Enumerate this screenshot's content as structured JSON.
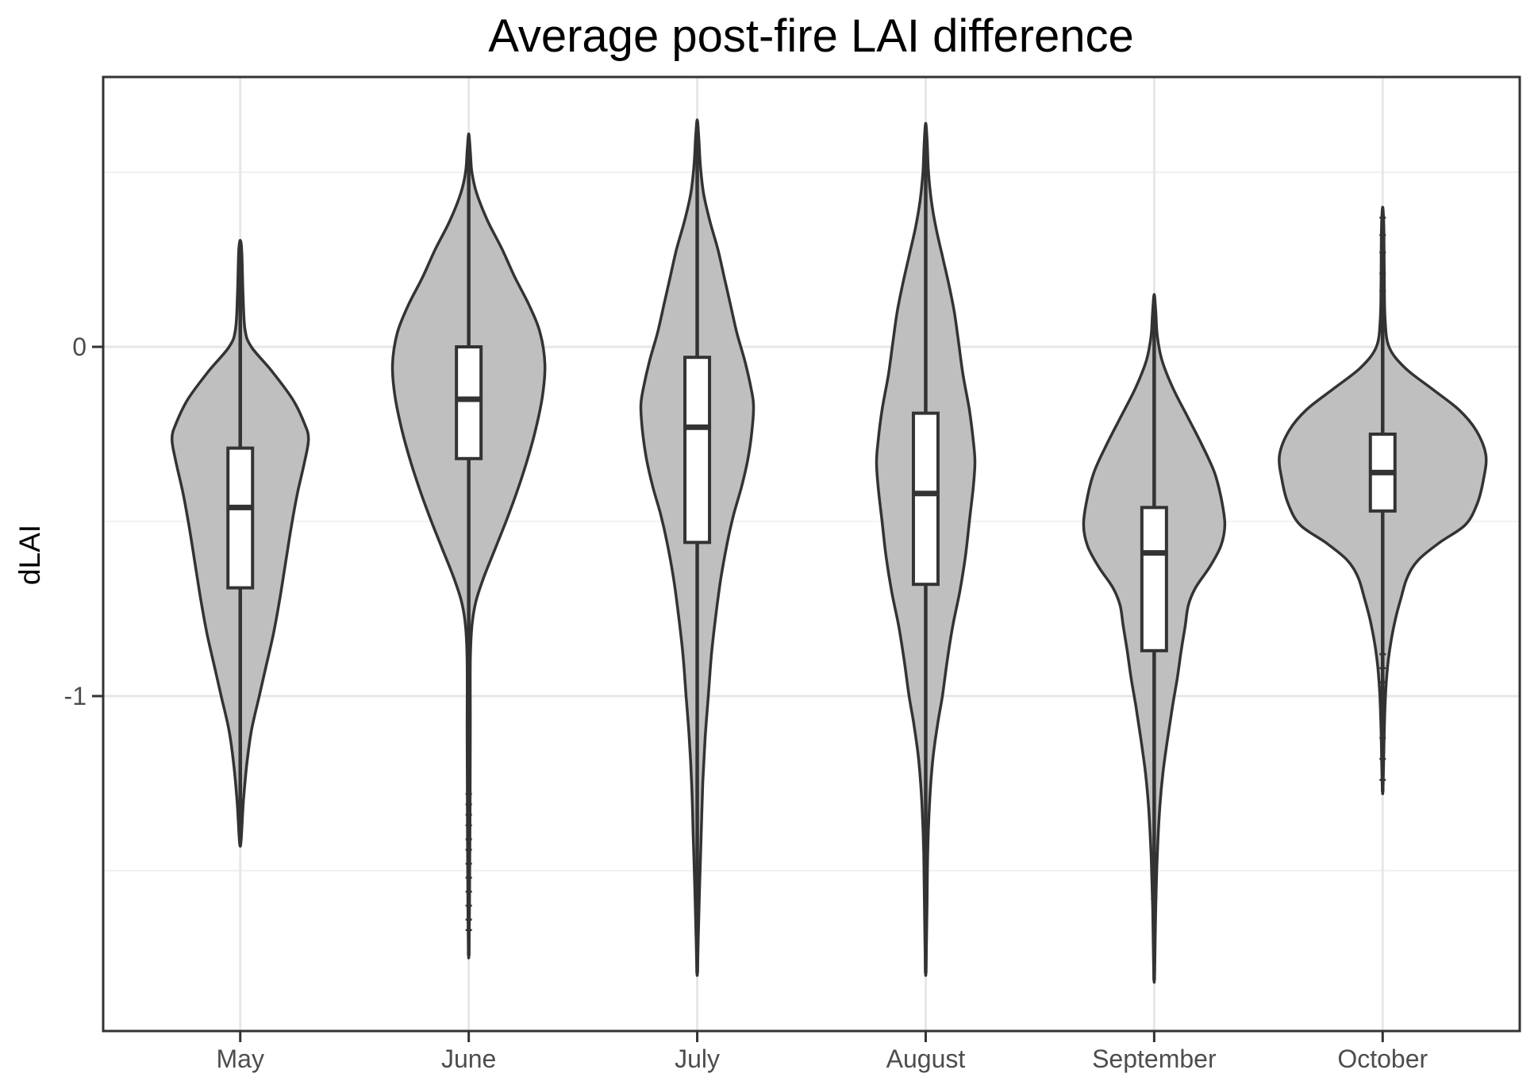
{
  "chart_data": {
    "type": "violin",
    "title": "Average post-fire LAI difference",
    "ylabel": "dLAI",
    "xlabel": "",
    "ylim": [
      -1.97,
      0.77
    ],
    "grid": "on",
    "legend": "none",
    "y_ticks": [
      {
        "label": "0",
        "value": 0
      },
      {
        "label": "-1",
        "value": -1
      }
    ],
    "y_major_gridlines": [
      0,
      -1
    ],
    "y_minor_gridlines": [
      0.5,
      -0.5,
      -1.5
    ],
    "categories": [
      "May",
      "June",
      "July",
      "August",
      "September",
      "October"
    ],
    "series": [
      {
        "name": "May",
        "box": {
          "q3": -0.29,
          "median": -0.46,
          "q1": -0.69
        },
        "line_top": 0.305,
        "line_bottom": -1.43,
        "outliers": [],
        "shape": [
          [
            0.305,
            0
          ],
          [
            0.27,
            2
          ],
          [
            0.15,
            3.5
          ],
          [
            0.05,
            6
          ],
          [
            0.0,
            14
          ],
          [
            -0.07,
            40
          ],
          [
            -0.15,
            66
          ],
          [
            -0.22,
            81
          ],
          [
            -0.264,
            86
          ],
          [
            -0.33,
            81
          ],
          [
            -0.42,
            72
          ],
          [
            -0.52,
            64
          ],
          [
            -0.62,
            57
          ],
          [
            -0.72,
            50
          ],
          [
            -0.82,
            42
          ],
          [
            -0.92,
            32
          ],
          [
            -1.0,
            24
          ],
          [
            -1.1,
            14
          ],
          [
            -1.2,
            8
          ],
          [
            -1.3,
            4
          ],
          [
            -1.43,
            0
          ]
        ]
      },
      {
        "name": "June",
        "box": {
          "q3": 0.0,
          "median": -0.15,
          "q1": -0.32
        },
        "line_top": 0.61,
        "line_bottom": -1.75,
        "outliers": [
          -1.28,
          -1.31,
          -1.34,
          -1.37,
          -1.41,
          -1.44,
          -1.48,
          -1.52,
          -1.56,
          -1.6,
          -1.64,
          -1.67
        ],
        "shape": [
          [
            0.61,
            0
          ],
          [
            0.56,
            2
          ],
          [
            0.5,
            4
          ],
          [
            0.44,
            10
          ],
          [
            0.36,
            24
          ],
          [
            0.28,
            42
          ],
          [
            0.2,
            58
          ],
          [
            0.12,
            76
          ],
          [
            0.04,
            90
          ],
          [
            -0.05,
            96
          ],
          [
            -0.14,
            93
          ],
          [
            -0.24,
            84
          ],
          [
            -0.33,
            73
          ],
          [
            -0.42,
            60
          ],
          [
            -0.5,
            47
          ],
          [
            -0.58,
            33
          ],
          [
            -0.66,
            19
          ],
          [
            -0.73,
            9
          ],
          [
            -0.8,
            4
          ],
          [
            -0.9,
            2
          ],
          [
            -1.1,
            2
          ],
          [
            -1.4,
            1.5
          ],
          [
            -1.6,
            1
          ],
          [
            -1.75,
            0
          ]
        ]
      },
      {
        "name": "July",
        "box": {
          "q3": -0.03,
          "median": -0.23,
          "q1": -0.56
        },
        "line_top": 0.65,
        "line_bottom": -1.8,
        "outliers": [],
        "shape": [
          [
            0.65,
            0
          ],
          [
            0.6,
            2
          ],
          [
            0.52,
            4
          ],
          [
            0.44,
            8
          ],
          [
            0.36,
            16
          ],
          [
            0.28,
            26
          ],
          [
            0.2,
            34
          ],
          [
            0.12,
            42
          ],
          [
            0.04,
            50
          ],
          [
            -0.04,
            60
          ],
          [
            -0.12,
            68
          ],
          [
            -0.17,
            71
          ],
          [
            -0.24,
            69
          ],
          [
            -0.32,
            64
          ],
          [
            -0.4,
            56
          ],
          [
            -0.48,
            46
          ],
          [
            -0.56,
            38
          ],
          [
            -0.66,
            30
          ],
          [
            -0.76,
            24
          ],
          [
            -0.88,
            18
          ],
          [
            -1.0,
            14
          ],
          [
            -1.12,
            10
          ],
          [
            -1.25,
            7
          ],
          [
            -1.4,
            5
          ],
          [
            -1.55,
            3
          ],
          [
            -1.68,
            1.5
          ],
          [
            -1.8,
            0
          ]
        ]
      },
      {
        "name": "August",
        "box": {
          "q3": -0.19,
          "median": -0.42,
          "q1": -0.68
        },
        "line_top": 0.64,
        "line_bottom": -1.8,
        "outliers": [],
        "shape": [
          [
            0.64,
            0
          ],
          [
            0.58,
            2
          ],
          [
            0.5,
            3.5
          ],
          [
            0.42,
            7
          ],
          [
            0.34,
            13
          ],
          [
            0.26,
            21
          ],
          [
            0.18,
            29
          ],
          [
            0.1,
            36
          ],
          [
            0.02,
            41
          ],
          [
            -0.08,
            47
          ],
          [
            -0.18,
            55
          ],
          [
            -0.27,
            60
          ],
          [
            -0.33,
            62
          ],
          [
            -0.4,
            60
          ],
          [
            -0.5,
            55
          ],
          [
            -0.6,
            50
          ],
          [
            -0.7,
            43
          ],
          [
            -0.8,
            34
          ],
          [
            -0.9,
            27
          ],
          [
            -1.0,
            21
          ],
          [
            -1.08,
            15
          ],
          [
            -1.18,
            9
          ],
          [
            -1.3,
            5
          ],
          [
            -1.45,
            2.5
          ],
          [
            -1.62,
            1.5
          ],
          [
            -1.8,
            0
          ]
        ]
      },
      {
        "name": "September",
        "box": {
          "q3": -0.46,
          "median": -0.59,
          "q1": -0.87
        },
        "line_top": 0.15,
        "line_bottom": -1.82,
        "outliers": [
          -1.45,
          -1.48,
          -1.51,
          -1.55,
          -1.58
        ],
        "shape": [
          [
            0.15,
            0
          ],
          [
            0.1,
            2
          ],
          [
            0.03,
            4
          ],
          [
            -0.04,
            10
          ],
          [
            -0.12,
            24
          ],
          [
            -0.2,
            42
          ],
          [
            -0.28,
            60
          ],
          [
            -0.36,
            76
          ],
          [
            -0.44,
            85
          ],
          [
            -0.51,
            89
          ],
          [
            -0.57,
            84
          ],
          [
            -0.63,
            70
          ],
          [
            -0.69,
            52
          ],
          [
            -0.74,
            43
          ],
          [
            -0.8,
            39
          ],
          [
            -0.87,
            34
          ],
          [
            -0.95,
            29
          ],
          [
            -1.03,
            23
          ],
          [
            -1.12,
            17
          ],
          [
            -1.22,
            11
          ],
          [
            -1.32,
            7
          ],
          [
            -1.45,
            4
          ],
          [
            -1.6,
            2
          ],
          [
            -1.82,
            0
          ]
        ]
      },
      {
        "name": "October",
        "box": {
          "q3": -0.25,
          "median": -0.36,
          "q1": -0.47
        },
        "line_top": 0.4,
        "line_bottom": -1.28,
        "outliers": [
          0.37,
          0.32,
          0.27,
          0.21,
          0.16,
          0.11,
          0.05,
          -0.88,
          -0.92,
          -0.96,
          -1.01,
          -1.06,
          -1.12,
          -1.18,
          -1.24
        ],
        "shape": [
          [
            0.4,
            0
          ],
          [
            0.34,
            1.5
          ],
          [
            0.2,
            2
          ],
          [
            0.08,
            3
          ],
          [
            0.0,
            8
          ],
          [
            -0.06,
            28
          ],
          [
            -0.12,
            62
          ],
          [
            -0.18,
            96
          ],
          [
            -0.24,
            118
          ],
          [
            -0.31,
            130
          ],
          [
            -0.38,
            127
          ],
          [
            -0.45,
            119
          ],
          [
            -0.51,
            104
          ],
          [
            -0.56,
            72
          ],
          [
            -0.61,
            45
          ],
          [
            -0.66,
            31
          ],
          [
            -0.72,
            23
          ],
          [
            -0.78,
            16
          ],
          [
            -0.85,
            10
          ],
          [
            -0.92,
            6
          ],
          [
            -1.0,
            3.5
          ],
          [
            -1.1,
            2
          ],
          [
            -1.28,
            0
          ]
        ]
      }
    ],
    "colors": {
      "violin_fill": "#bfbfbf",
      "violin_stroke": "#333333",
      "box_fill": "#ffffff",
      "box_stroke": "#333333",
      "panel_border": "#333333",
      "grid_major": "#e7e7e7",
      "grid_minor": "#f1f1f1",
      "tick_mark": "#333333",
      "tick_text": "#4d4d4d",
      "title_text": "#000000",
      "background": "#ffffff"
    }
  }
}
